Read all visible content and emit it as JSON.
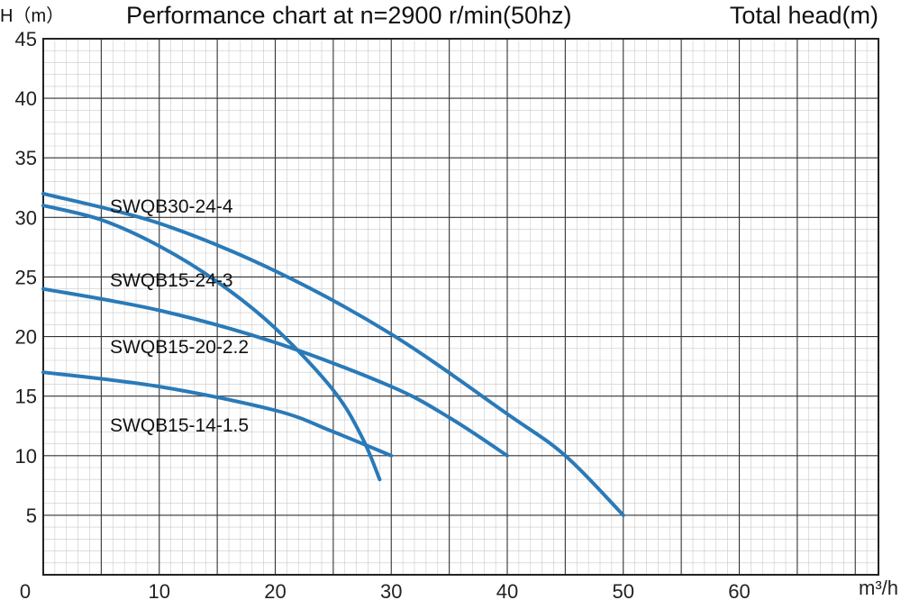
{
  "header": {
    "y_unit_label": "H（m）",
    "title": "Performance chart at n=2900 r/min(50hz)",
    "right_label": "Total head(m)"
  },
  "chart_data": {
    "type": "line",
    "title": "Performance chart at n=2900 r/min(50hz)",
    "ylabel": "H（m）",
    "ylabel_secondary": "Total head(m)",
    "xlabel": "m³/h",
    "xlim": [
      0,
      72
    ],
    "ylim": [
      0,
      45
    ],
    "x_ticks": [
      0,
      10,
      20,
      30,
      40,
      50,
      60
    ],
    "y_ticks": [
      5,
      10,
      15,
      20,
      25,
      30,
      35,
      40,
      45
    ],
    "grid": true,
    "series_color": "#2a7ab8",
    "series": [
      {
        "name": "SWQB30-24-4",
        "x": [
          0,
          10,
          20,
          30,
          40,
          45,
          50
        ],
        "y": [
          32,
          29.5,
          25.5,
          20.2,
          13.5,
          10.0,
          5.0
        ]
      },
      {
        "name": "SWQB15-24-3",
        "x": [
          0,
          5,
          10,
          15,
          20,
          25,
          27.5,
          29
        ],
        "y": [
          31,
          29.8,
          27.6,
          24.6,
          20.7,
          15.5,
          11.5,
          8.0
        ]
      },
      {
        "name": "SWQB15-20-2.2",
        "x": [
          0,
          10,
          20,
          30,
          35,
          40
        ],
        "y": [
          24,
          22.2,
          19.5,
          15.8,
          13.2,
          10.0
        ]
      },
      {
        "name": "SWQB15-14-1.5",
        "x": [
          0,
          10,
          20,
          25,
          30
        ],
        "y": [
          17,
          15.8,
          13.8,
          12.0,
          10.0
        ]
      }
    ]
  }
}
